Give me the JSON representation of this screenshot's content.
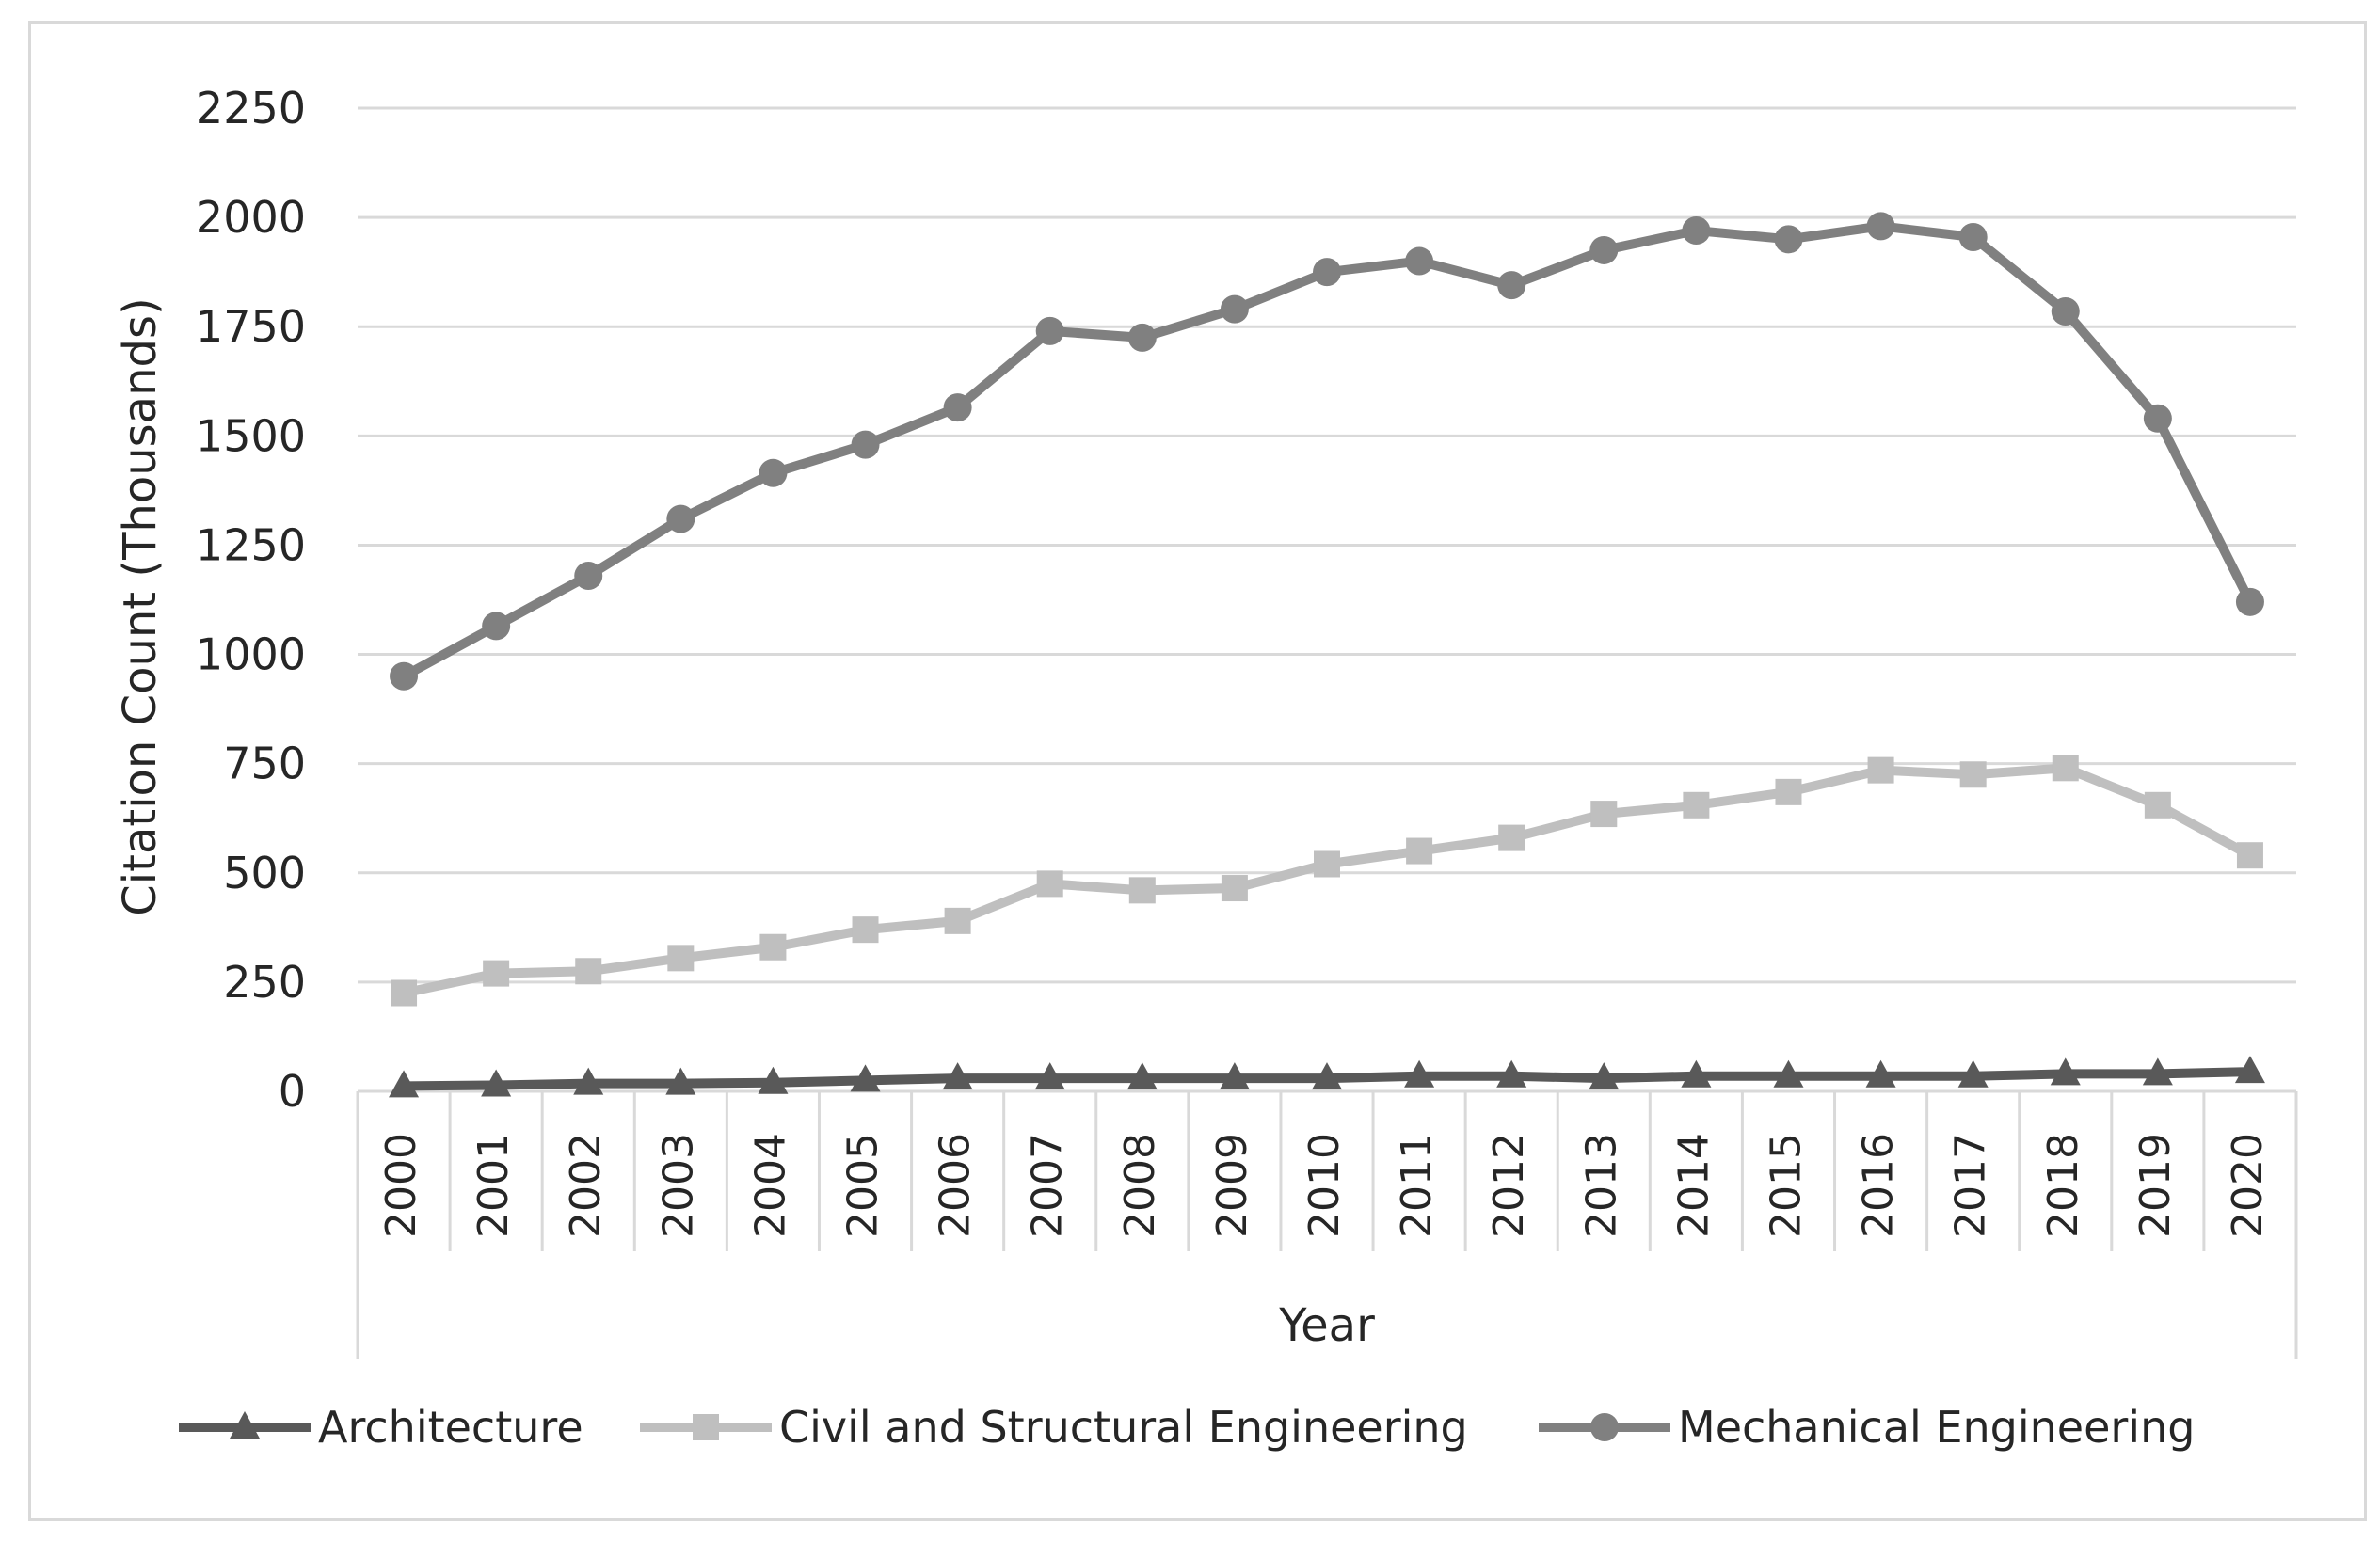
{
  "chart_data": {
    "type": "line",
    "title": "",
    "xlabel": "Year",
    "ylabel": "Citation Count (Thousands)",
    "ylim": [
      0,
      2250
    ],
    "yticks": [
      0,
      250,
      500,
      750,
      1000,
      1250,
      1500,
      1750,
      2000,
      2250
    ],
    "grid": true,
    "legend_position": "bottom",
    "categories": [
      "2000",
      "2001",
      "2002",
      "2003",
      "2004",
      "2005",
      "2006",
      "2007",
      "2008",
      "2009",
      "2010",
      "2011",
      "2012",
      "2013",
      "2014",
      "2015",
      "2016",
      "2017",
      "2018",
      "2019",
      "2020"
    ],
    "series": [
      {
        "name": "Architecture",
        "marker": "triangle",
        "color": "#595959",
        "values": [
          12,
          14,
          18,
          18,
          20,
          25,
          30,
          30,
          30,
          30,
          30,
          35,
          35,
          30,
          35,
          35,
          35,
          35,
          40,
          40,
          45
        ]
      },
      {
        "name": "Civil and Structural Engineering",
        "marker": "square",
        "color": "#bfbfbf",
        "values": [
          225,
          270,
          275,
          305,
          330,
          370,
          390,
          475,
          460,
          465,
          520,
          550,
          580,
          635,
          655,
          685,
          735,
          725,
          740,
          655,
          540
        ]
      },
      {
        "name": "Mechanical Engineering",
        "marker": "circle",
        "color": "#808080",
        "values": [
          950,
          1065,
          1180,
          1310,
          1415,
          1480,
          1565,
          1740,
          1725,
          1790,
          1875,
          1900,
          1845,
          1925,
          1970,
          1950,
          1980,
          1955,
          1785,
          1540,
          1120
        ]
      }
    ]
  }
}
